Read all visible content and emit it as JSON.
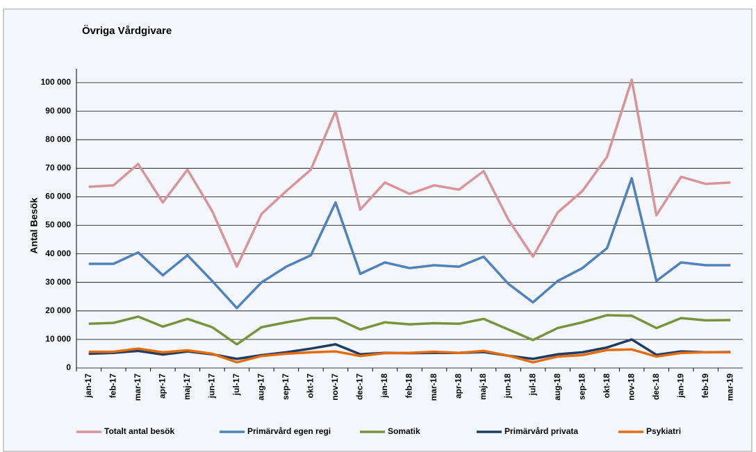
{
  "chart_data": {
    "type": "line",
    "title": "Övriga Vårdgivare",
    "y_label": "Antal Besök",
    "categories": [
      "jan-17",
      "feb-17",
      "mar-17",
      "apr-17",
      "maj-17",
      "jun-17",
      "jul-17",
      "aug-17",
      "sep-17",
      "okt-17",
      "nov-17",
      "dec-17",
      "jan-18",
      "feb-18",
      "mar-18",
      "apr-18",
      "maj-18",
      "jun-18",
      "jul-18",
      "aug-18",
      "sep-18",
      "okt-18",
      "nov-18",
      "dec-18",
      "jan-19",
      "feb-19",
      "mar-19"
    ],
    "series": [
      {
        "name": "Totalt antal besök",
        "color": "#d9949a",
        "values": [
          63500,
          64000,
          71500,
          58000,
          69500,
          55000,
          35500,
          54000,
          62000,
          69500,
          90000,
          55500,
          65000,
          61000,
          64000,
          62500,
          69000,
          52000,
          39000,
          54500,
          62000,
          74000,
          101000,
          53500,
          67000,
          64500,
          65000
        ]
      },
      {
        "name": "Primärvård egen regi",
        "color": "#4f81bd",
        "values": [
          36500,
          36500,
          40500,
          32500,
          39500,
          30500,
          21000,
          30000,
          35500,
          39500,
          58000,
          33000,
          37000,
          35000,
          36000,
          35500,
          39000,
          29500,
          23000,
          30500,
          35000,
          42000,
          66500,
          30500,
          37000,
          36000,
          36000
        ]
      },
      {
        "name": "Somatik",
        "color": "#77933c",
        "values": [
          15500,
          15800,
          18000,
          14500,
          17200,
          14300,
          8300,
          14300,
          16000,
          17500,
          17500,
          13500,
          16000,
          15300,
          15700,
          15500,
          17200,
          13500,
          9800,
          14000,
          16000,
          18500,
          18300,
          14000,
          17500,
          16700,
          16800
        ]
      },
      {
        "name": "Primärvård privata",
        "color": "#1f3c64",
        "values": [
          5000,
          5300,
          6000,
          4700,
          5800,
          4800,
          3200,
          4500,
          5500,
          6800,
          8300,
          4800,
          5300,
          5200,
          5300,
          5300,
          5600,
          4300,
          3200,
          4800,
          5500,
          7200,
          10000,
          4600,
          5800,
          5500,
          5600
        ]
      },
      {
        "name": "Psykiatri",
        "color": "#e46c0a",
        "values": [
          5700,
          5700,
          6800,
          5500,
          6200,
          5000,
          2000,
          4200,
          5000,
          5500,
          5800,
          4200,
          5200,
          5300,
          5700,
          5300,
          6000,
          4300,
          2000,
          4000,
          4500,
          6300,
          6500,
          4000,
          5300,
          5500,
          5500
        ]
      }
    ],
    "ylim": [
      0,
      100000
    ],
    "yticks": [
      0,
      {
        "value": 10000,
        "label": "10 000"
      },
      {
        "value": 20000,
        "label": "20 000"
      },
      {
        "value": 30000,
        "label": "30 000"
      },
      {
        "value": 40000,
        "label": "40 000"
      },
      {
        "value": 50000,
        "label": "50 000"
      },
      {
        "value": 60000,
        "label": "60 000"
      },
      {
        "value": 70000,
        "label": "70 000"
      },
      {
        "value": 80000,
        "label": "80 000"
      },
      {
        "value": 90000,
        "label": "90 000"
      },
      {
        "value": 100000,
        "label": "100 000"
      }
    ],
    "grid": true,
    "legend": "bottom"
  }
}
